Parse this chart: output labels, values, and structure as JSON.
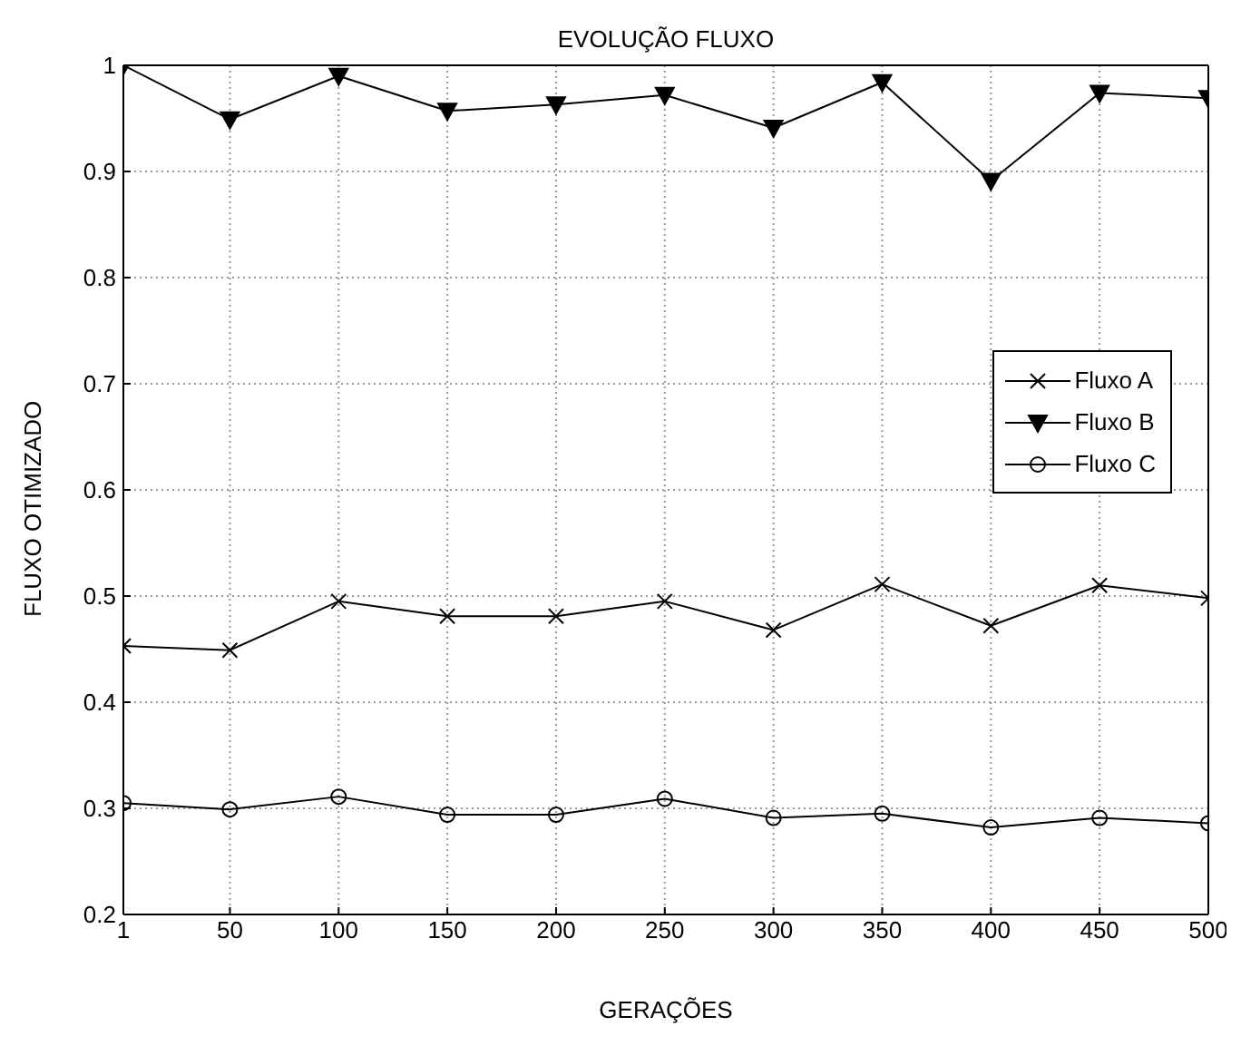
{
  "chart_data": {
    "type": "line",
    "title": "EVOLUÇÃO FLUXO",
    "xlabel": "GERAÇÕES",
    "ylabel": "FLUXO OTIMIZADO",
    "x": [
      1,
      50,
      100,
      150,
      200,
      250,
      300,
      350,
      400,
      450,
      500
    ],
    "series": [
      {
        "name": "Fluxo A",
        "color": "#000000",
        "marker": "cross",
        "values": [
          0.453,
          0.449,
          0.495,
          0.481,
          0.481,
          0.495,
          0.468,
          0.511,
          0.472,
          0.51,
          0.498
        ]
      },
      {
        "name": "Fluxo B",
        "color": "#000000",
        "marker": "triangle",
        "values": [
          1,
          0.949,
          0.99,
          0.957,
          0.963,
          0.972,
          0.941,
          0.984,
          0.891,
          0.974,
          0.969
        ]
      },
      {
        "name": "Fluxo C",
        "color": "#000000",
        "marker": "circle",
        "values": [
          0.305,
          0.299,
          0.311,
          0.294,
          0.294,
          0.309,
          0.291,
          0.295,
          0.282,
          0.291,
          0.286
        ]
      }
    ],
    "xlim": [
      1,
      500
    ],
    "xticks": [
      1,
      50,
      100,
      150,
      200,
      250,
      300,
      350,
      400,
      450,
      500
    ],
    "ylim": [
      0.2,
      1
    ],
    "yticks": [
      0.2,
      0.3,
      0.4,
      0.5,
      0.6,
      0.7,
      0.8,
      0.9,
      1
    ],
    "grid": true,
    "legend": "right",
    "line_style": "solid"
  }
}
